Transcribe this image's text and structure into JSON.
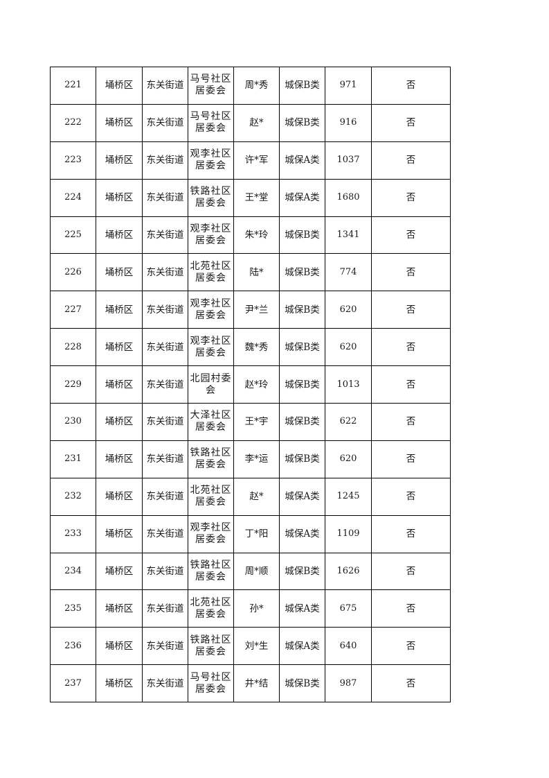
{
  "table": {
    "rows": [
      [
        "221",
        "埇桥区",
        "东关街道",
        "马号社区居委会",
        "周*秀",
        "城保B类",
        "971",
        "否"
      ],
      [
        "222",
        "埇桥区",
        "东关街道",
        "马号社区居委会",
        "赵*",
        "城保B类",
        "916",
        "否"
      ],
      [
        "223",
        "埇桥区",
        "东关街道",
        "观李社区居委会",
        "许*军",
        "城保A类",
        "1037",
        "否"
      ],
      [
        "224",
        "埇桥区",
        "东关街道",
        "铁路社区居委会",
        "王*堂",
        "城保A类",
        "1680",
        "否"
      ],
      [
        "225",
        "埇桥区",
        "东关街道",
        "观李社区居委会",
        "朱*玲",
        "城保B类",
        "1341",
        "否"
      ],
      [
        "226",
        "埇桥区",
        "东关街道",
        "北苑社区居委会",
        "陆*",
        "城保B类",
        "774",
        "否"
      ],
      [
        "227",
        "埇桥区",
        "东关街道",
        "观李社区居委会",
        "尹*兰",
        "城保B类",
        "620",
        "否"
      ],
      [
        "228",
        "埇桥区",
        "东关街道",
        "观李社区居委会",
        "魏*秀",
        "城保B类",
        "620",
        "否"
      ],
      [
        "229",
        "埇桥区",
        "东关街道",
        "北园村委会",
        "赵*玲",
        "城保B类",
        "1013",
        "否"
      ],
      [
        "230",
        "埇桥区",
        "东关街道",
        "大泽社区居委会",
        "王*宇",
        "城保B类",
        "622",
        "否"
      ],
      [
        "231",
        "埇桥区",
        "东关街道",
        "铁路社区居委会",
        "李*运",
        "城保B类",
        "620",
        "否"
      ],
      [
        "232",
        "埇桥区",
        "东关街道",
        "北苑社区居委会",
        "赵*",
        "城保A类",
        "1245",
        "否"
      ],
      [
        "233",
        "埇桥区",
        "东关街道",
        "观李社区居委会",
        "丁*阳",
        "城保A类",
        "1109",
        "否"
      ],
      [
        "234",
        "埇桥区",
        "东关街道",
        "铁路社区居委会",
        "周*顺",
        "城保B类",
        "1626",
        "否"
      ],
      [
        "235",
        "埇桥区",
        "东关街道",
        "北苑社区居委会",
        "孙*",
        "城保A类",
        "675",
        "否"
      ],
      [
        "236",
        "埇桥区",
        "东关街道",
        "铁路社区居委会",
        "刘*生",
        "城保A类",
        "640",
        "否"
      ],
      [
        "237",
        "埇桥区",
        "东关街道",
        "马号社区居委会",
        "井*结",
        "城保B类",
        "987",
        "否"
      ]
    ]
  }
}
